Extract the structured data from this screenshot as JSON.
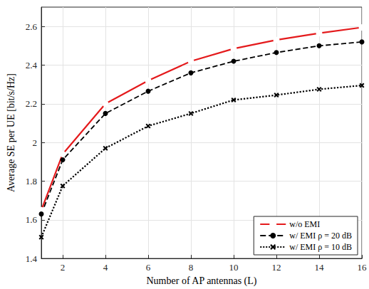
{
  "chart_data": {
    "type": "line",
    "x_label": "Number of AP antennas (L)",
    "y_label": "Average SE per UE [bit/s/Hz]",
    "x": [
      1,
      2,
      4,
      6,
      8,
      10,
      12,
      14,
      16
    ],
    "xlim": [
      1,
      16
    ],
    "xticks": [
      2,
      4,
      6,
      8,
      10,
      12,
      14,
      16
    ],
    "ylim": [
      1.4,
      2.7
    ],
    "yticks": [
      1.4,
      1.6,
      1.8,
      2,
      2.2,
      2.4,
      2.6
    ],
    "grid": true,
    "legend": "lower right",
    "series": [
      {
        "name": "w/o EMI",
        "color": "#e41a1c",
        "marker": "open_circle",
        "line_style": "solid",
        "values": [
          1.65,
          1.94,
          2.2,
          2.32,
          2.42,
          2.485,
          2.53,
          2.565,
          2.595
        ]
      },
      {
        "name": "w/ EMI ρ = 20 dB",
        "color": "#000000",
        "marker": "circle",
        "line_style": "dashed",
        "values": [
          1.63,
          1.91,
          2.15,
          2.265,
          2.36,
          2.42,
          2.465,
          2.5,
          2.52
        ]
      },
      {
        "name": "w/ EMI ρ = 10 dB",
        "color": "#000000",
        "marker": "x",
        "line_style": "dotted",
        "values": [
          1.51,
          1.775,
          1.97,
          2.085,
          2.15,
          2.22,
          2.245,
          2.275,
          2.295
        ]
      }
    ]
  }
}
